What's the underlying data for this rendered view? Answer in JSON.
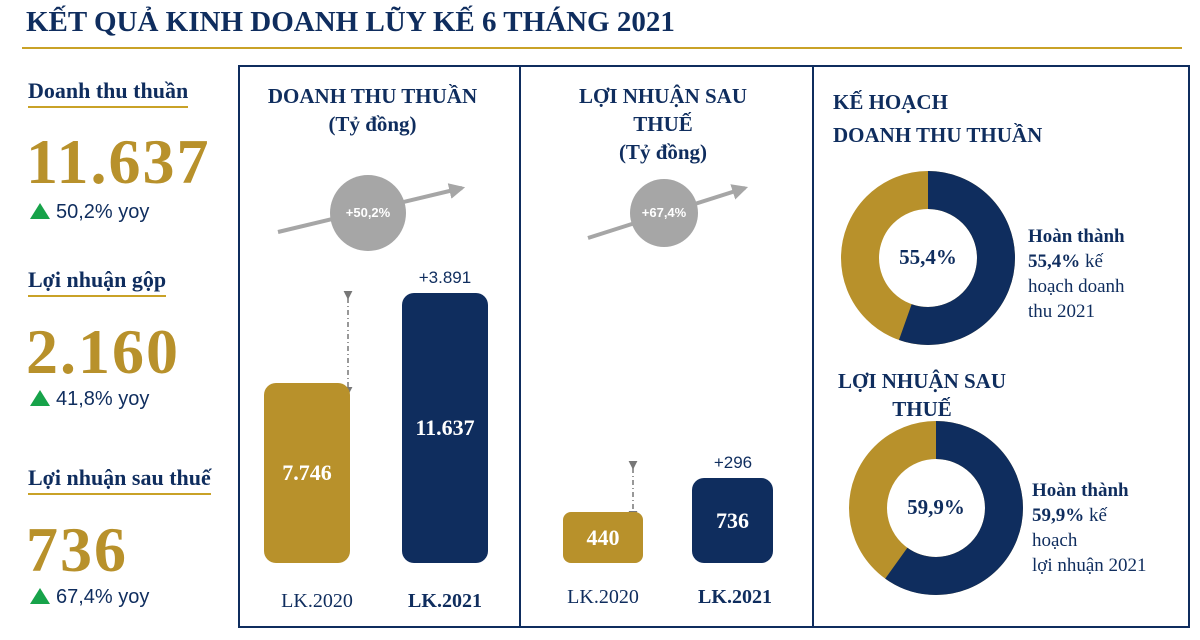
{
  "title": "KẾT QUẢ KINH DOANH LŨY KẾ 6 THÁNG 2021",
  "kpis": [
    {
      "label": "Doanh thu thuần",
      "value": "11.637",
      "change": "50,2% yoy"
    },
    {
      "label": "Lợi nhuận gộp",
      "value": "2.160",
      "change": "41,8% yoy"
    },
    {
      "label": "Lợi nhuận sau thuế",
      "value": "736",
      "change": "67,4% yoy"
    }
  ],
  "panels": [
    {
      "title": "DOANH THU THUẦN",
      "unit": "(Tỷ đồng)",
      "growth": "+50,2%",
      "delta": "+3.891",
      "bars": [
        {
          "category": "LK.2020",
          "value": {
            "value": 7746,
            "label": "7.746"
          }
        },
        {
          "category": "LK.2021",
          "value": {
            "value": 11637,
            "label": "11.637"
          }
        }
      ]
    },
    {
      "title": "LỢI NHUẬN SAU THUẾ",
      "unit": "(Tỷ đồng)",
      "growth": "+67,4%",
      "delta": "+296",
      "bars": [
        {
          "category": "LK.2020",
          "value": {
            "value": 440,
            "label": "440"
          }
        },
        {
          "category": "LK.2021",
          "value": {
            "value": 736,
            "label": "736"
          }
        }
      ]
    }
  ],
  "plan": {
    "title_lines": [
      "KẾ HOẠCH",
      "DOANH THU THUẦN"
    ],
    "donuts": [
      {
        "value": {
          "value": 55.4,
          "label": "55,4%"
        },
        "note_lead": "Hoàn thành",
        "note_after_value": "kế",
        "note_lines": [
          "hoạch doanh",
          "thu 2021"
        ]
      },
      {
        "title": "LỢI NHUẬN SAU THUẾ",
        "value": {
          "value": 59.9,
          "label": "59,9%"
        },
        "note_lead": "Hoàn thành",
        "note_after_value": "kế",
        "note_lines": [
          "hoạch",
          "lợi nhuận 2021"
        ]
      }
    ]
  }
}
